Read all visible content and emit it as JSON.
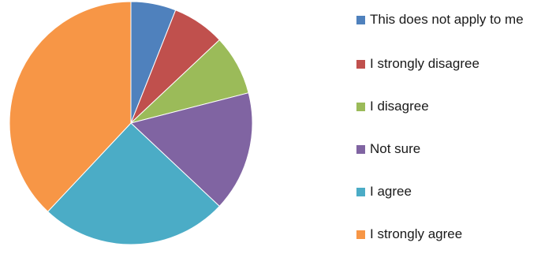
{
  "chart_data": {
    "type": "pie",
    "labels": [
      "This does not apply to me",
      "I strongly disagree",
      "I disagree",
      "Not sure",
      "I agree",
      "I strongly agree"
    ],
    "values": [
      6,
      7,
      8,
      16,
      25,
      38
    ],
    "colors": [
      "#4f81bd",
      "#c0504d",
      "#9bbb59",
      "#8064a2",
      "#4bacc6",
      "#f79646"
    ],
    "start_angle_deg": 0,
    "direction": "clockwise",
    "legend_position": "right"
  }
}
